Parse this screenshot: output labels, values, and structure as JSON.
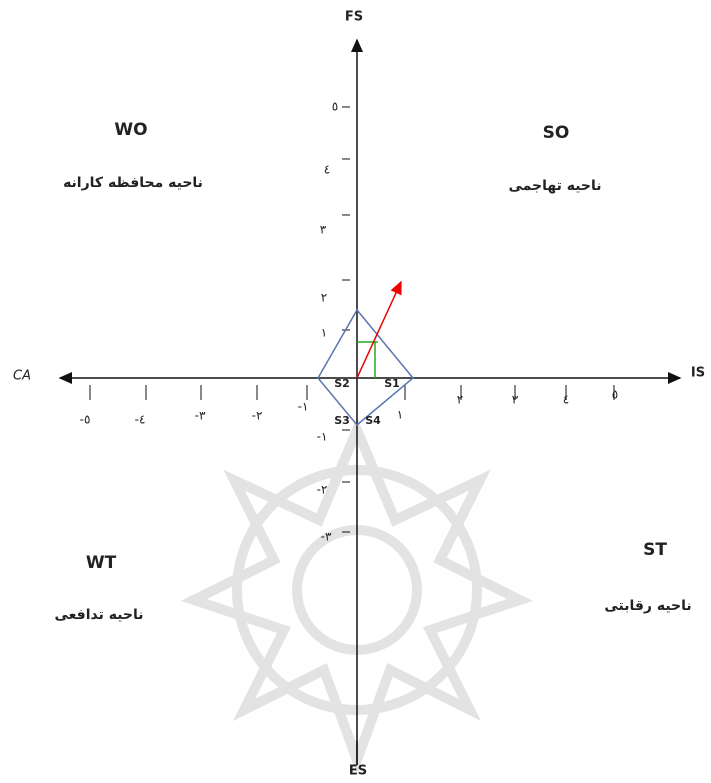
{
  "axes": {
    "top": "FS",
    "bottom": "ES",
    "left": "CA",
    "right": "IS"
  },
  "quadrants": {
    "wo": {
      "code": "WO",
      "name": "ناحیه محافظه کارانه"
    },
    "so": {
      "code": "SO",
      "name": "ناحیه تهاجمی"
    },
    "wt": {
      "code": "WT",
      "name": "ناحیه تدافعی"
    },
    "st": {
      "code": "ST",
      "name": "ناحیه رقابتی"
    }
  },
  "x_tick_labels": [
    "-٥",
    "-٤",
    "-٣",
    "-٢",
    "-١",
    "١",
    "٢",
    "٣",
    "٤",
    "٥"
  ],
  "y_tick_labels": [
    "٥",
    "٤",
    "٣",
    "٢",
    "١",
    "-١",
    "-٢",
    "-٣"
  ],
  "vertices": [
    "S1",
    "S2",
    "S3",
    "S4"
  ]
}
